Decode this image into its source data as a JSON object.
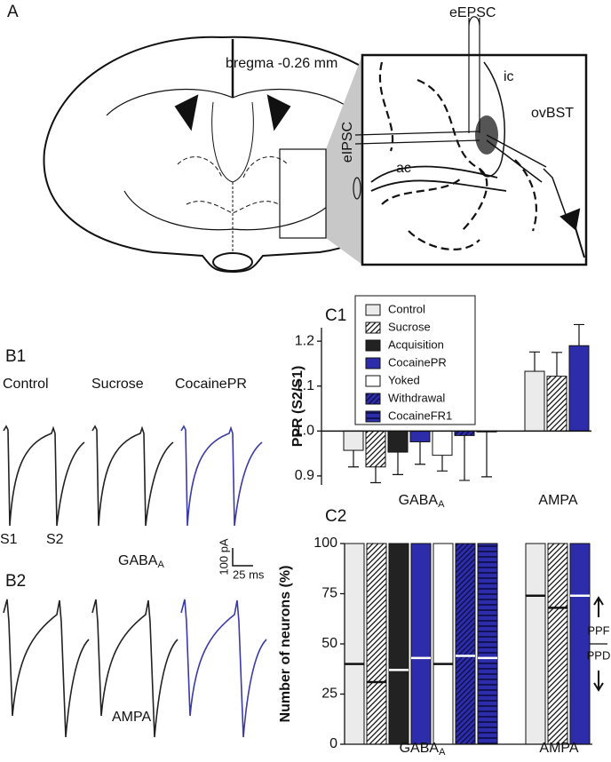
{
  "panels": {
    "A": "A",
    "B1": "B1",
    "B2": "B2",
    "C1": "C1",
    "C2": "C2"
  },
  "diagram": {
    "bregma": "bregma -0.26 mm",
    "eEPSC": "eEPSC",
    "ic": "ic",
    "ovBST": "ovBST",
    "eIPSC": "eIPSC",
    "ac": "ac"
  },
  "traces": {
    "groups": [
      "Control",
      "Sucrose",
      "CocainePR"
    ],
    "stimuli": [
      "S1",
      "S2"
    ],
    "b1_receptor": {
      "text": "GABA",
      "sub": "A"
    },
    "b2_receptor": "AMPA",
    "scale_current": "100 pA",
    "scale_time": "25 ms"
  },
  "chart_data": [
    {
      "type": "bar",
      "ylabel": "PPR (S2/S1)",
      "categories": [
        {
          "text": "GABA",
          "sub": "A"
        },
        {
          "text": "AMPA"
        }
      ],
      "baseline": 1,
      "ylim": [
        0.88,
        1.23
      ],
      "yticks": [
        0.9,
        {
          "value": 1,
          "label": "1.0"
        },
        1.1,
        1.2
      ],
      "series": [
        {
          "name": "Control",
          "color": "#ebebeb",
          "values": [
            0.957,
            1.133
          ],
          "errors": [
            0.037,
            0.043
          ]
        },
        {
          "name": "Sucrose",
          "color": "#ffffff",
          "pattern": "diagonal",
          "values": [
            0.92,
            1.122
          ],
          "errors": [
            0.035,
            0.053
          ]
        },
        {
          "name": "Acquisition",
          "color": "#222222",
          "values": [
            0.953,
            null
          ],
          "errors": [
            0.05,
            null
          ]
        },
        {
          "name": "CocainePR",
          "color": "#2d2dab",
          "values": [
            0.976,
            1.19
          ],
          "errors": [
            0.05,
            0.047
          ]
        },
        {
          "name": "Yoked",
          "color": "#ffffff",
          "values": [
            0.946,
            null
          ],
          "errors": [
            0.035,
            null
          ]
        },
        {
          "name": "Withdrawal",
          "color": "#2d2dab",
          "pattern": "diagonal",
          "values": [
            0.99,
            null
          ],
          "errors": [
            0.1,
            null
          ]
        },
        {
          "name": "CocaineFR1",
          "color": "#2d2dab",
          "pattern": "horizontal",
          "values": [
            0.998,
            null
          ],
          "errors": [
            0.1,
            null
          ]
        }
      ]
    },
    {
      "type": "split_bar",
      "ylabel": "Number of neurons (%)",
      "categories": [
        {
          "text": "GABA",
          "sub": "A"
        },
        {
          "text": "AMPA"
        }
      ],
      "ylim": [
        0,
        100
      ],
      "yticks": [
        0,
        25,
        50,
        75,
        100
      ],
      "annotations": {
        "top": "PPF",
        "bottom": "PPD"
      },
      "series": [
        {
          "color": "#ebebeb",
          "values": [
            40,
            74
          ]
        },
        {
          "color": "#ffffff",
          "pattern": "diagonal",
          "values": [
            31,
            68
          ]
        },
        {
          "color": "#222222",
          "values": [
            37,
            null
          ]
        },
        {
          "color": "#2d2dab",
          "values": [
            43,
            74
          ]
        },
        {
          "color": "#ffffff",
          "values": [
            40,
            null
          ]
        },
        {
          "color": "#2d2dab",
          "pattern": "diagonal",
          "values": [
            44,
            null
          ]
        },
        {
          "color": "#2d2dab",
          "pattern": "horizontal",
          "values": [
            43,
            null
          ]
        }
      ]
    }
  ]
}
